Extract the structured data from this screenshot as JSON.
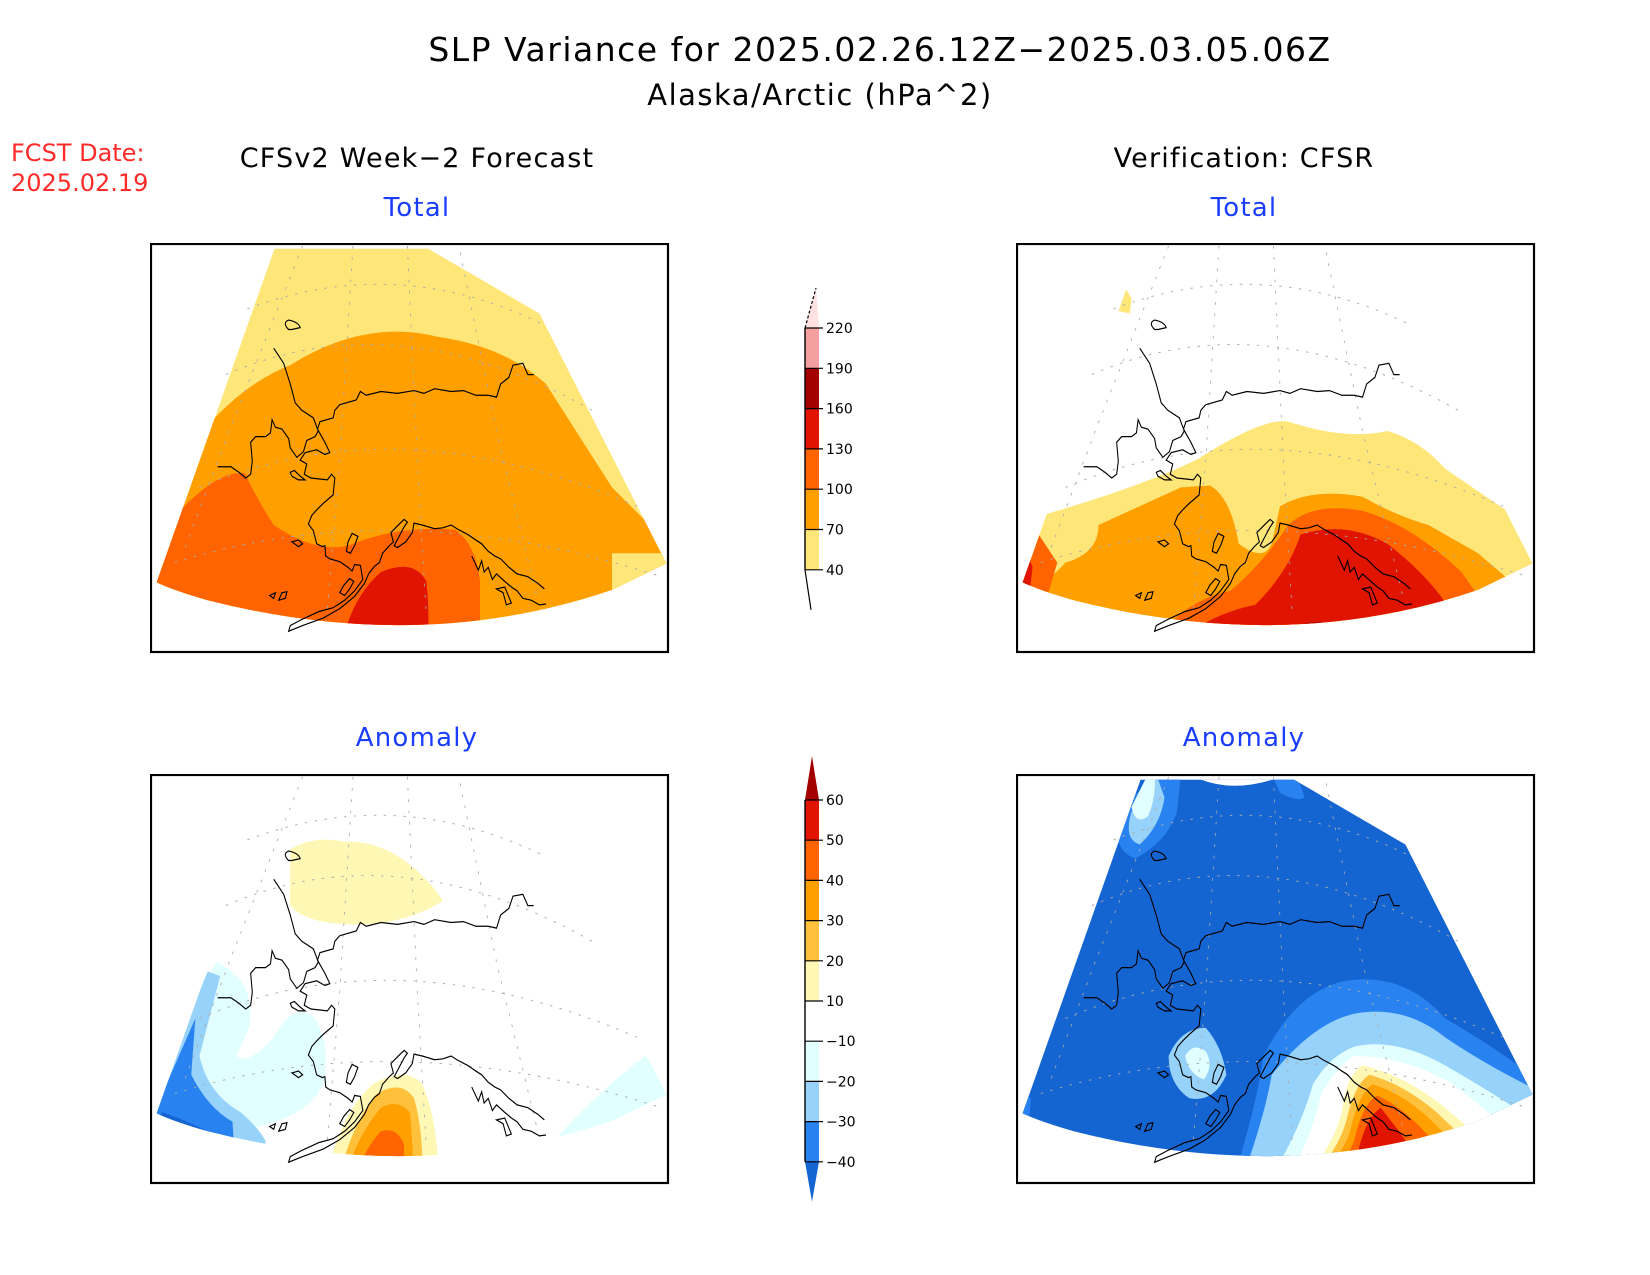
{
  "header": {
    "title": "SLP Variance for 2025.02.26.12Z−2025.03.05.06Z",
    "subtitle": "Alaska/Arctic (hPa^2)",
    "fcst_date_label": "FCST Date:",
    "fcst_date_value": "2025.02.19"
  },
  "columns": {
    "left": "CFSv2 Week−2 Forecast",
    "right": "Verification: CFSR"
  },
  "panels": {
    "top_left_label": "Total",
    "top_right_label": "Total",
    "bottom_left_label": "Anomaly",
    "bottom_right_label": "Anomaly"
  },
  "colors": {
    "label_blue": "#1a3dff",
    "fcst_red": "#ff2a2a"
  },
  "legend_total": {
    "ticks": [
      "220",
      "190",
      "160",
      "130",
      "100",
      "70",
      "40"
    ],
    "colors_top_to_bottom": [
      "#ffe1e1",
      "#f4a0a0",
      "#a50000",
      "#e01400",
      "#ff6400",
      "#ffa000",
      "#ffe678"
    ],
    "extend_low_color": "#ffffff"
  },
  "legend_anomaly": {
    "ticks": [
      "60",
      "50",
      "40",
      "30",
      "20",
      "10",
      "−10",
      "−20",
      "−30",
      "−40"
    ],
    "colors_top_to_bottom": [
      "#a50000",
      "#e01400",
      "#ff6400",
      "#ffa000",
      "#ffc03c",
      "#fff8b4",
      "#ffffff",
      "#e1ffff",
      "#96d2fa",
      "#2882f0",
      "#1464d2"
    ]
  }
}
